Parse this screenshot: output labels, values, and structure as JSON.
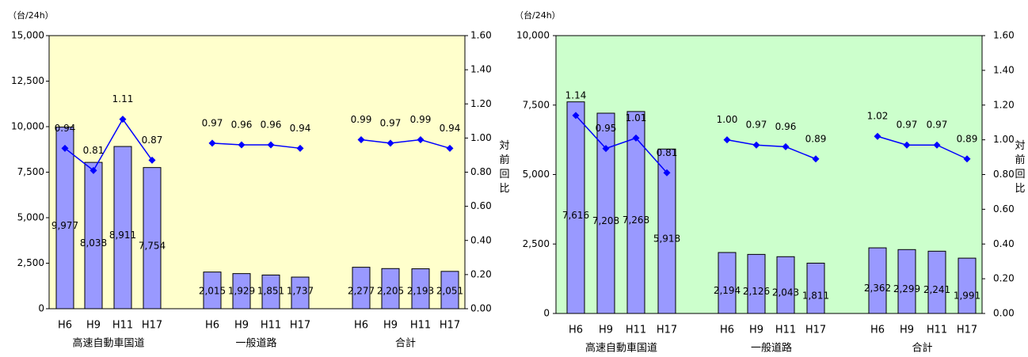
{
  "chart_data": [
    {
      "type": "bar+line",
      "unit_label": "（台/24h）",
      "y2label": "対前回比",
      "ylim": [
        0,
        15000
      ],
      "y_ticks": [
        "0",
        "2,500",
        "5,000",
        "7,500",
        "10,000",
        "12,500",
        "15,000"
      ],
      "y_tick_values": [
        0,
        2500,
        5000,
        7500,
        10000,
        12500,
        15000
      ],
      "y2lim": [
        0,
        1.6
      ],
      "y2_ticks": [
        "0.00",
        "0.20",
        "0.40",
        "0.60",
        "0.80",
        "1.00",
        "1.20",
        "1.40",
        "1.60"
      ],
      "y2_tick_values": [
        0,
        0.2,
        0.4,
        0.6,
        0.8,
        1.0,
        1.2,
        1.4,
        1.6
      ],
      "plot_background": "#ffffcc",
      "bar_color": "#9999ff",
      "line_color": "#0000ff",
      "groups": [
        {
          "name": "高速自動車国道",
          "categories": [
            "H6",
            "H9",
            "H11",
            "H17"
          ],
          "values": [
            9977,
            8038,
            8911,
            7754
          ],
          "value_labels": [
            "9,977",
            "8,038",
            "8,911",
            "7,754"
          ],
          "ratios": [
            0.94,
            0.81,
            1.11,
            0.87
          ],
          "ratio_labels": [
            "0.94",
            "0.81",
            "1.11",
            "0.87"
          ]
        },
        {
          "name": "一般道路",
          "categories": [
            "H6",
            "H9",
            "H11",
            "H17"
          ],
          "values": [
            2015,
            1929,
            1851,
            1737
          ],
          "value_labels": [
            "2,015",
            "1,929",
            "1,851",
            "1,737"
          ],
          "ratios": [
            0.97,
            0.96,
            0.96,
            0.94
          ],
          "ratio_labels": [
            "0.97",
            "0.96",
            "0.96",
            "0.94"
          ]
        },
        {
          "name": "合計",
          "categories": [
            "H6",
            "H9",
            "H11",
            "H17"
          ],
          "values": [
            2277,
            2205,
            2193,
            2051
          ],
          "value_labels": [
            "2,277",
            "2,205",
            "2,193",
            "2,051"
          ],
          "ratios": [
            0.99,
            0.97,
            0.99,
            0.94
          ],
          "ratio_labels": [
            "0.99",
            "0.97",
            "0.99",
            "0.94"
          ]
        }
      ]
    },
    {
      "type": "bar+line",
      "unit_label": "（台/24h）",
      "y2label": "対前回比",
      "ylim": [
        0,
        10000
      ],
      "y_ticks": [
        "0",
        "2,500",
        "5,000",
        "7,500",
        "10,000"
      ],
      "y_tick_values": [
        0,
        2500,
        5000,
        7500,
        10000
      ],
      "y2lim": [
        0,
        1.6
      ],
      "y2_ticks": [
        "0.00",
        "0.20",
        "0.40",
        "0.60",
        "0.80",
        "1.00",
        "1.20",
        "1.40",
        "1.60"
      ],
      "y2_tick_values": [
        0,
        0.2,
        0.4,
        0.6,
        0.8,
        1.0,
        1.2,
        1.4,
        1.6
      ],
      "plot_background": "#ccffcc",
      "bar_color": "#9999ff",
      "line_color": "#0000ff",
      "groups": [
        {
          "name": "高速自動車国道",
          "categories": [
            "H6",
            "H9",
            "H11",
            "H17"
          ],
          "values": [
            7616,
            7208,
            7268,
            5918
          ],
          "value_labels": [
            "7,616",
            "7,208",
            "7,268",
            "5,918"
          ],
          "ratios": [
            1.14,
            0.95,
            1.01,
            0.81
          ],
          "ratio_labels": [
            "1.14",
            "0.95",
            "1.01",
            "0.81"
          ]
        },
        {
          "name": "一般道路",
          "categories": [
            "H6",
            "H9",
            "H11",
            "H17"
          ],
          "values": [
            2194,
            2126,
            2043,
            1811
          ],
          "value_labels": [
            "2,194",
            "2,126",
            "2,043",
            "1,811"
          ],
          "ratios": [
            1.0,
            0.97,
            0.96,
            0.89
          ],
          "ratio_labels": [
            "1.00",
            "0.97",
            "0.96",
            "0.89"
          ]
        },
        {
          "name": "合計",
          "categories": [
            "H6",
            "H9",
            "H11",
            "H17"
          ],
          "values": [
            2362,
            2299,
            2241,
            1991
          ],
          "value_labels": [
            "2,362",
            "2,299",
            "2,241",
            "1,991"
          ],
          "ratios": [
            1.02,
            0.97,
            0.97,
            0.89
          ],
          "ratio_labels": [
            "1.02",
            "0.97",
            "0.97",
            "0.89"
          ]
        }
      ]
    }
  ]
}
